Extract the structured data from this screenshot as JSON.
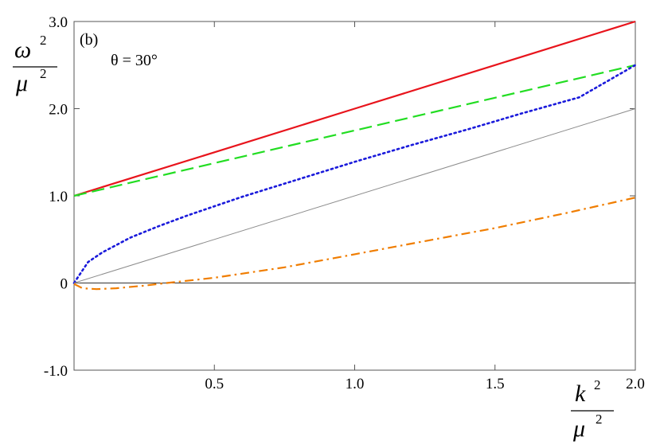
{
  "chart_data": {
    "type": "line",
    "panel_label": "(b)",
    "annotation": "θ = 30°",
    "ylabel": {
      "num_base": "ω",
      "den_base": "μ",
      "exp": "2"
    },
    "xlabel": {
      "num_base": "k",
      "den_base": "μ",
      "exp": "2"
    },
    "xlim": [
      0,
      2.0
    ],
    "ylim": [
      -1.0,
      3.0
    ],
    "x_ticks": [
      {
        "value": 0.5,
        "label": "0.5"
      },
      {
        "value": 1.0,
        "label": "1.0"
      },
      {
        "value": 1.5,
        "label": "1.5"
      },
      {
        "value": 2.0,
        "label": "2.0"
      }
    ],
    "y_ticks": [
      {
        "value": -1.0,
        "label": "-1.0"
      },
      {
        "value": 0,
        "label": "0"
      },
      {
        "value": 1.0,
        "label": "1.0"
      },
      {
        "value": 2.0,
        "label": "2.0"
      },
      {
        "value": 3.0,
        "label": "3.0"
      }
    ],
    "grid": false,
    "series": [
      {
        "key": "red-solid",
        "color": "#e8141c",
        "style": "solid",
        "x": [
          0,
          0.5,
          1.0,
          1.5,
          2.0
        ],
        "y": [
          1.0,
          1.5,
          2.0,
          2.5,
          3.0
        ]
      },
      {
        "key": "green-dashed",
        "color": "#22dd22",
        "style": "dashed",
        "x": [
          0,
          0.5,
          1.0,
          1.5,
          2.0
        ],
        "y": [
          1.0,
          1.375,
          1.75,
          2.125,
          2.5
        ]
      },
      {
        "key": "blue-dotted",
        "color": "#1a1adb",
        "style": "dotted",
        "x": [
          0,
          0.05,
          0.1,
          0.2,
          0.3,
          0.4,
          0.5,
          0.6,
          0.8,
          1.0,
          1.2,
          1.4,
          1.6,
          1.8,
          2.0
        ],
        "y": [
          0.0,
          0.24,
          0.35,
          0.52,
          0.65,
          0.77,
          0.88,
          0.99,
          1.19,
          1.39,
          1.58,
          1.76,
          1.95,
          2.13,
          2.5
        ]
      },
      {
        "key": "gray-thin",
        "color": "#8c8c8c",
        "style": "thin",
        "x": [
          0,
          2.0
        ],
        "y": [
          0,
          2.0
        ]
      },
      {
        "key": "orange-dashdot",
        "color": "#f07d00",
        "style": "dashdot",
        "x": [
          0,
          0.03,
          0.08,
          0.15,
          0.25,
          0.33,
          0.5,
          0.75,
          1.0,
          1.25,
          1.5,
          1.75,
          2.0
        ],
        "y": [
          -0.01,
          -0.06,
          -0.07,
          -0.06,
          -0.03,
          0.0,
          0.06,
          0.18,
          0.33,
          0.48,
          0.63,
          0.8,
          0.98
        ]
      }
    ]
  }
}
